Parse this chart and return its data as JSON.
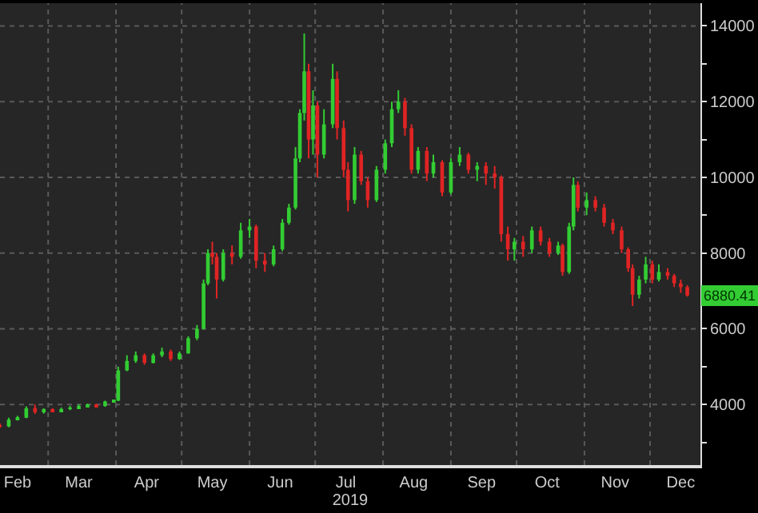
{
  "chart_data": {
    "type": "candlestick",
    "xlabel": "2019",
    "x": [
      "2019-02-07",
      "2019-02-11",
      "2019-02-15",
      "2019-02-19",
      "2019-02-23",
      "2019-02-27",
      "2019-03-03",
      "2019-03-07",
      "2019-03-11",
      "2019-03-15",
      "2019-03-19",
      "2019-03-23",
      "2019-03-27",
      "2019-03-31",
      "2019-04-02",
      "2019-04-06",
      "2019-04-10",
      "2019-04-14",
      "2019-04-18",
      "2019-04-22",
      "2019-04-26",
      "2019-04-30",
      "2019-05-04",
      "2019-05-08",
      "2019-05-11",
      "2019-05-13",
      "2019-05-15",
      "2019-05-17",
      "2019-05-20",
      "2019-05-24",
      "2019-05-28",
      "2019-06-01",
      "2019-06-04",
      "2019-06-08",
      "2019-06-12",
      "2019-06-16",
      "2019-06-19",
      "2019-06-22",
      "2019-06-24",
      "2019-06-26",
      "2019-06-28",
      "2019-06-30",
      "2019-07-02",
      "2019-07-05",
      "2019-07-09",
      "2019-07-11",
      "2019-07-14",
      "2019-07-16",
      "2019-07-19",
      "2019-07-22",
      "2019-07-25",
      "2019-07-29",
      "2019-08-02",
      "2019-08-05",
      "2019-08-08",
      "2019-08-11",
      "2019-08-14",
      "2019-08-17",
      "2019-08-21",
      "2019-08-24",
      "2019-08-28",
      "2019-09-01",
      "2019-09-05",
      "2019-09-09",
      "2019-09-13",
      "2019-09-17",
      "2019-09-21",
      "2019-09-24",
      "2019-09-27",
      "2019-09-30",
      "2019-10-04",
      "2019-10-08",
      "2019-10-12",
      "2019-10-16",
      "2019-10-20",
      "2019-10-22",
      "2019-10-25",
      "2019-10-27",
      "2019-10-29",
      "2019-11-02",
      "2019-11-06",
      "2019-11-10",
      "2019-11-14",
      "2019-11-18",
      "2019-11-21",
      "2019-11-23",
      "2019-11-26",
      "2019-11-29",
      "2019-12-02",
      "2019-12-05",
      "2019-12-09",
      "2019-12-12",
      "2019-12-15",
      "2019-12-18"
    ],
    "ohlc": [
      [
        3450,
        3500,
        3380,
        3420
      ],
      [
        3420,
        3650,
        3400,
        3600
      ],
      [
        3600,
        3700,
        3580,
        3650
      ],
      [
        3650,
        3950,
        3640,
        3900
      ],
      [
        3900,
        4000,
        3750,
        3800
      ],
      [
        3800,
        3900,
        3760,
        3850
      ],
      [
        3850,
        3900,
        3800,
        3820
      ],
      [
        3820,
        3920,
        3800,
        3880
      ],
      [
        3880,
        3960,
        3850,
        3900
      ],
      [
        3900,
        4000,
        3880,
        3960
      ],
      [
        3960,
        4020,
        3920,
        3980
      ],
      [
        3980,
        4020,
        3940,
        3960
      ],
      [
        3960,
        4100,
        3940,
        4080
      ],
      [
        4080,
        4120,
        4050,
        4100
      ],
      [
        4100,
        5000,
        4090,
        4900
      ],
      [
        4900,
        5300,
        4880,
        5150
      ],
      [
        5150,
        5400,
        5100,
        5300
      ],
      [
        5300,
        5350,
        5050,
        5100
      ],
      [
        5100,
        5350,
        5080,
        5300
      ],
      [
        5300,
        5500,
        5250,
        5400
      ],
      [
        5400,
        5450,
        5150,
        5200
      ],
      [
        5200,
        5400,
        5180,
        5350
      ],
      [
        5350,
        5800,
        5340,
        5750
      ],
      [
        5750,
        6100,
        5700,
        6000
      ],
      [
        6000,
        7300,
        5980,
        7200
      ],
      [
        7200,
        8100,
        7150,
        8000
      ],
      [
        8000,
        8300,
        7700,
        7900
      ],
      [
        7900,
        8000,
        6800,
        7300
      ],
      [
        7300,
        8100,
        7250,
        8000
      ],
      [
        8000,
        8200,
        7700,
        7900
      ],
      [
        7900,
        8800,
        7850,
        8600
      ],
      [
        8600,
        8900,
        8400,
        8700
      ],
      [
        8700,
        8750,
        7600,
        7800
      ],
      [
        7800,
        8000,
        7500,
        7700
      ],
      [
        7700,
        8200,
        7650,
        8100
      ],
      [
        8100,
        8900,
        8050,
        8800
      ],
      [
        8800,
        9300,
        8750,
        9200
      ],
      [
        9200,
        10800,
        9150,
        10500
      ],
      [
        10500,
        11800,
        10400,
        11700
      ],
      [
        11700,
        13800,
        11500,
        12800
      ],
      [
        12800,
        13000,
        10500,
        11000
      ],
      [
        11000,
        12300,
        10600,
        11900
      ],
      [
        11900,
        12000,
        10000,
        10600
      ],
      [
        10600,
        11800,
        10500,
        11400
      ],
      [
        11400,
        13000,
        11300,
        12600
      ],
      [
        12600,
        12800,
        11000,
        11300
      ],
      [
        11300,
        11500,
        10000,
        10200
      ],
      [
        10200,
        10400,
        9100,
        9400
      ],
      [
        9400,
        10800,
        9300,
        10600
      ],
      [
        10600,
        10700,
        9800,
        9900
      ],
      [
        9900,
        10000,
        9200,
        9400
      ],
      [
        9400,
        10300,
        9350,
        10200
      ],
      [
        10200,
        11000,
        10100,
        10900
      ],
      [
        10900,
        12000,
        10800,
        11800
      ],
      [
        11800,
        12300,
        11700,
        12000
      ],
      [
        12000,
        12100,
        11100,
        11300
      ],
      [
        11300,
        11400,
        10100,
        10200
      ],
      [
        10200,
        10800,
        10100,
        10700
      ],
      [
        10700,
        10800,
        9900,
        10100
      ],
      [
        10100,
        10600,
        10000,
        10400
      ],
      [
        10400,
        10450,
        9500,
        9600
      ],
      [
        9600,
        10500,
        9550,
        10400
      ],
      [
        10400,
        10800,
        10300,
        10600
      ],
      [
        10600,
        10650,
        10100,
        10200
      ],
      [
        10200,
        10400,
        9900,
        10300
      ],
      [
        10300,
        10400,
        9800,
        10100
      ],
      [
        10100,
        10300,
        9700,
        10000
      ],
      [
        10000,
        10050,
        8300,
        8500
      ],
      [
        8500,
        8700,
        7800,
        8100
      ],
      [
        8100,
        8400,
        7800,
        8300
      ],
      [
        8300,
        8450,
        7900,
        8100
      ],
      [
        8100,
        8700,
        8000,
        8600
      ],
      [
        8600,
        8700,
        8200,
        8300
      ],
      [
        8300,
        8400,
        7900,
        8000
      ],
      [
        8000,
        8300,
        7950,
        8200
      ],
      [
        8200,
        8250,
        7400,
        7500
      ],
      [
        7500,
        8800,
        7450,
        8700
      ],
      [
        8700,
        10000,
        8600,
        9800
      ],
      [
        9800,
        9900,
        9100,
        9200
      ],
      [
        9200,
        9600,
        9000,
        9400
      ],
      [
        9400,
        9500,
        9100,
        9200
      ],
      [
        9200,
        9300,
        8700,
        8800
      ],
      [
        8800,
        8900,
        8500,
        8600
      ],
      [
        8600,
        8700,
        8000,
        8100
      ],
      [
        8100,
        8150,
        7500,
        7600
      ],
      [
        7600,
        7700,
        6600,
        6900
      ],
      [
        6900,
        7400,
        6800,
        7300
      ],
      [
        7300,
        7900,
        7200,
        7700
      ],
      [
        7700,
        7800,
        7200,
        7300
      ],
      [
        7300,
        7700,
        7250,
        7500
      ],
      [
        7500,
        7600,
        7300,
        7400
      ],
      [
        7400,
        7450,
        7100,
        7200
      ],
      [
        7200,
        7300,
        6950,
        7100
      ],
      [
        7100,
        7150,
        6850,
        6880.41
      ]
    ],
    "colors": [
      "#e02424",
      "#33cc33",
      "#33cc33",
      "#33cc33",
      "#e02424",
      "#33cc33",
      "#e02424",
      "#33cc33",
      "#33cc33",
      "#33cc33",
      "#33cc33",
      "#e02424",
      "#33cc33",
      "#33cc33",
      "#33cc33",
      "#33cc33",
      "#33cc33",
      "#e02424",
      "#33cc33",
      "#33cc33",
      "#e02424",
      "#33cc33",
      "#33cc33",
      "#33cc33",
      "#33cc33",
      "#33cc33",
      "#e02424",
      "#e02424",
      "#33cc33",
      "#e02424",
      "#33cc33",
      "#33cc33",
      "#e02424",
      "#e02424",
      "#33cc33",
      "#33cc33",
      "#33cc33",
      "#33cc33",
      "#33cc33",
      "#33cc33",
      "#e02424",
      "#33cc33",
      "#e02424",
      "#33cc33",
      "#33cc33",
      "#e02424",
      "#e02424",
      "#e02424",
      "#33cc33",
      "#e02424",
      "#e02424",
      "#33cc33",
      "#33cc33",
      "#33cc33",
      "#33cc33",
      "#e02424",
      "#e02424",
      "#33cc33",
      "#e02424",
      "#33cc33",
      "#e02424",
      "#33cc33",
      "#33cc33",
      "#e02424",
      "#33cc33",
      "#e02424",
      "#e02424",
      "#e02424",
      "#e02424",
      "#33cc33",
      "#e02424",
      "#33cc33",
      "#e02424",
      "#e02424",
      "#33cc33",
      "#e02424",
      "#33cc33",
      "#33cc33",
      "#e02424",
      "#33cc33",
      "#e02424",
      "#e02424",
      "#e02424",
      "#e02424",
      "#e02424",
      "#e02424",
      "#33cc33",
      "#33cc33",
      "#e02424",
      "#33cc33",
      "#e02424",
      "#e02424",
      "#e02424",
      "#e02424"
    ],
    "xlim": [
      "2019-02-07",
      "2019-12-24"
    ],
    "xticks": [
      {
        "value": "2019-02-15",
        "label": "Feb"
      },
      {
        "value": "2019-03-01",
        "label": null
      },
      {
        "value": "2019-03-15",
        "label": "Mar"
      },
      {
        "value": "2019-04-01",
        "label": null
      },
      {
        "value": "2019-04-15",
        "label": "Apr"
      },
      {
        "value": "2019-05-01",
        "label": null
      },
      {
        "value": "2019-05-15",
        "label": "May"
      },
      {
        "value": "2019-06-01",
        "label": null
      },
      {
        "value": "2019-06-15",
        "label": "Jun"
      },
      {
        "value": "2019-07-01",
        "label": null
      },
      {
        "value": "2019-07-15",
        "label": "Jul"
      },
      {
        "value": "2019-08-01",
        "label": null
      },
      {
        "value": "2019-08-15",
        "label": "Aug"
      },
      {
        "value": "2019-09-01",
        "label": null
      },
      {
        "value": "2019-09-15",
        "label": "Sep"
      },
      {
        "value": "2019-10-01",
        "label": null
      },
      {
        "value": "2019-10-15",
        "label": "Oct"
      },
      {
        "value": "2019-11-01",
        "label": null
      },
      {
        "value": "2019-11-15",
        "label": "Nov"
      },
      {
        "value": "2019-12-01",
        "label": null
      },
      {
        "value": "2019-12-15",
        "label": "Dec"
      }
    ],
    "ylim": [
      2400,
      14600
    ],
    "yticks": [
      {
        "value": 3000,
        "label": null
      },
      4000,
      {
        "value": 5000,
        "label": null
      },
      6000,
      {
        "value": 7000,
        "label": null
      },
      8000,
      {
        "value": 9000,
        "label": null
      },
      10000,
      {
        "value": 11000,
        "label": null
      },
      12000,
      {
        "value": 13000,
        "label": null
      },
      14000
    ],
    "grid": true,
    "annotations": [
      {
        "text": "6880.41",
        "y": 6880.41
      }
    ]
  }
}
